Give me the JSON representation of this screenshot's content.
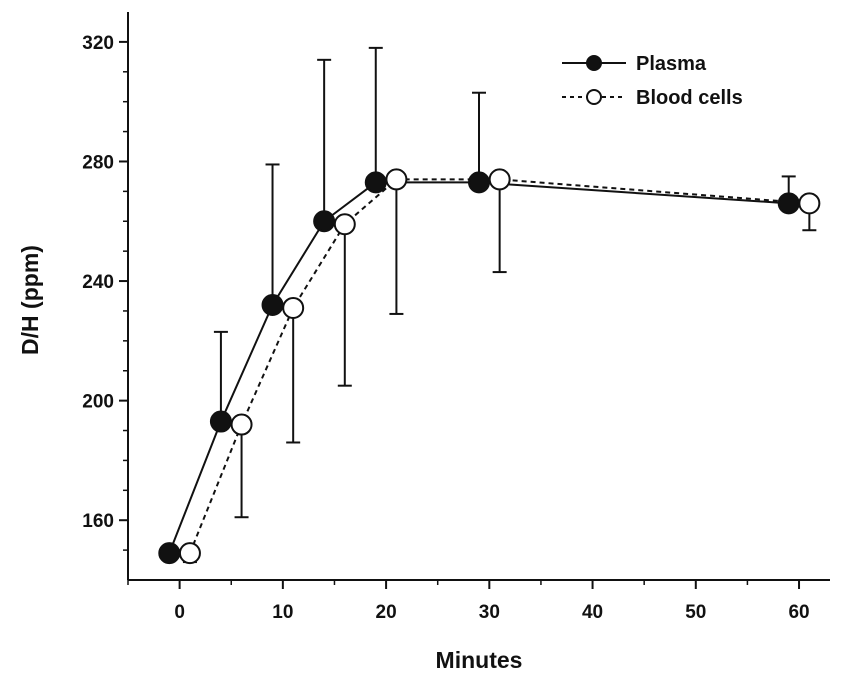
{
  "chart_data": {
    "type": "line",
    "title": "",
    "xlabel": "Minutes",
    "ylabel": "D/H (ppm)",
    "xlim": [
      -5,
      63
    ],
    "ylim": [
      140,
      330
    ],
    "xticks": [
      0,
      10,
      20,
      30,
      40,
      50,
      60
    ],
    "yticks": [
      160,
      200,
      240,
      280,
      320
    ],
    "grid": false,
    "legend_position": "top-right",
    "series": [
      {
        "name": "Plasma",
        "marker": "filled-circle",
        "line_style": "solid",
        "error_direction": "up",
        "x": [
          -1,
          4,
          9,
          14,
          19,
          29,
          59
        ],
        "y": [
          149,
          193,
          232,
          260,
          273,
          273,
          266
        ],
        "error": [
          0,
          30,
          47,
          54,
          45,
          30,
          9
        ]
      },
      {
        "name": "Blood cells",
        "marker": "open-circle",
        "line_style": "dashed",
        "error_direction": "down",
        "x": [
          1,
          6,
          11,
          16,
          21,
          31,
          61
        ],
        "y": [
          149,
          192,
          231,
          259,
          274,
          274,
          266
        ],
        "error": [
          3,
          31,
          45,
          54,
          45,
          31,
          9
        ]
      }
    ]
  }
}
